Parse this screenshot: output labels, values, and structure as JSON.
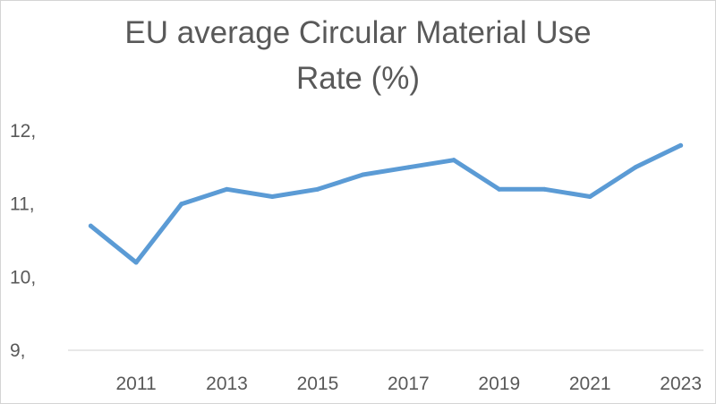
{
  "chart_data": {
    "type": "line",
    "title_lines": [
      "EU average Circular Material Use",
      "Rate (%)"
    ],
    "x": [
      2010,
      2011,
      2012,
      2013,
      2014,
      2015,
      2016,
      2017,
      2018,
      2019,
      2020,
      2021,
      2022,
      2023
    ],
    "series": [
      {
        "values": [
          10.7,
          10.2,
          11.0,
          11.2,
          11.1,
          11.2,
          11.4,
          11.5,
          11.6,
          11.2,
          11.2,
          11.1,
          11.5,
          11.8
        ],
        "color": "#5b9bd5"
      }
    ],
    "x_tick_labels": [
      "2011",
      "2013",
      "2015",
      "2017",
      "2019",
      "2021",
      "2023"
    ],
    "y_tick_labels": [
      "9,",
      "10,",
      "11,",
      "12,"
    ],
    "y_ticks": [
      9,
      10,
      11,
      12
    ],
    "ylim": [
      9,
      12
    ],
    "grid": false
  }
}
